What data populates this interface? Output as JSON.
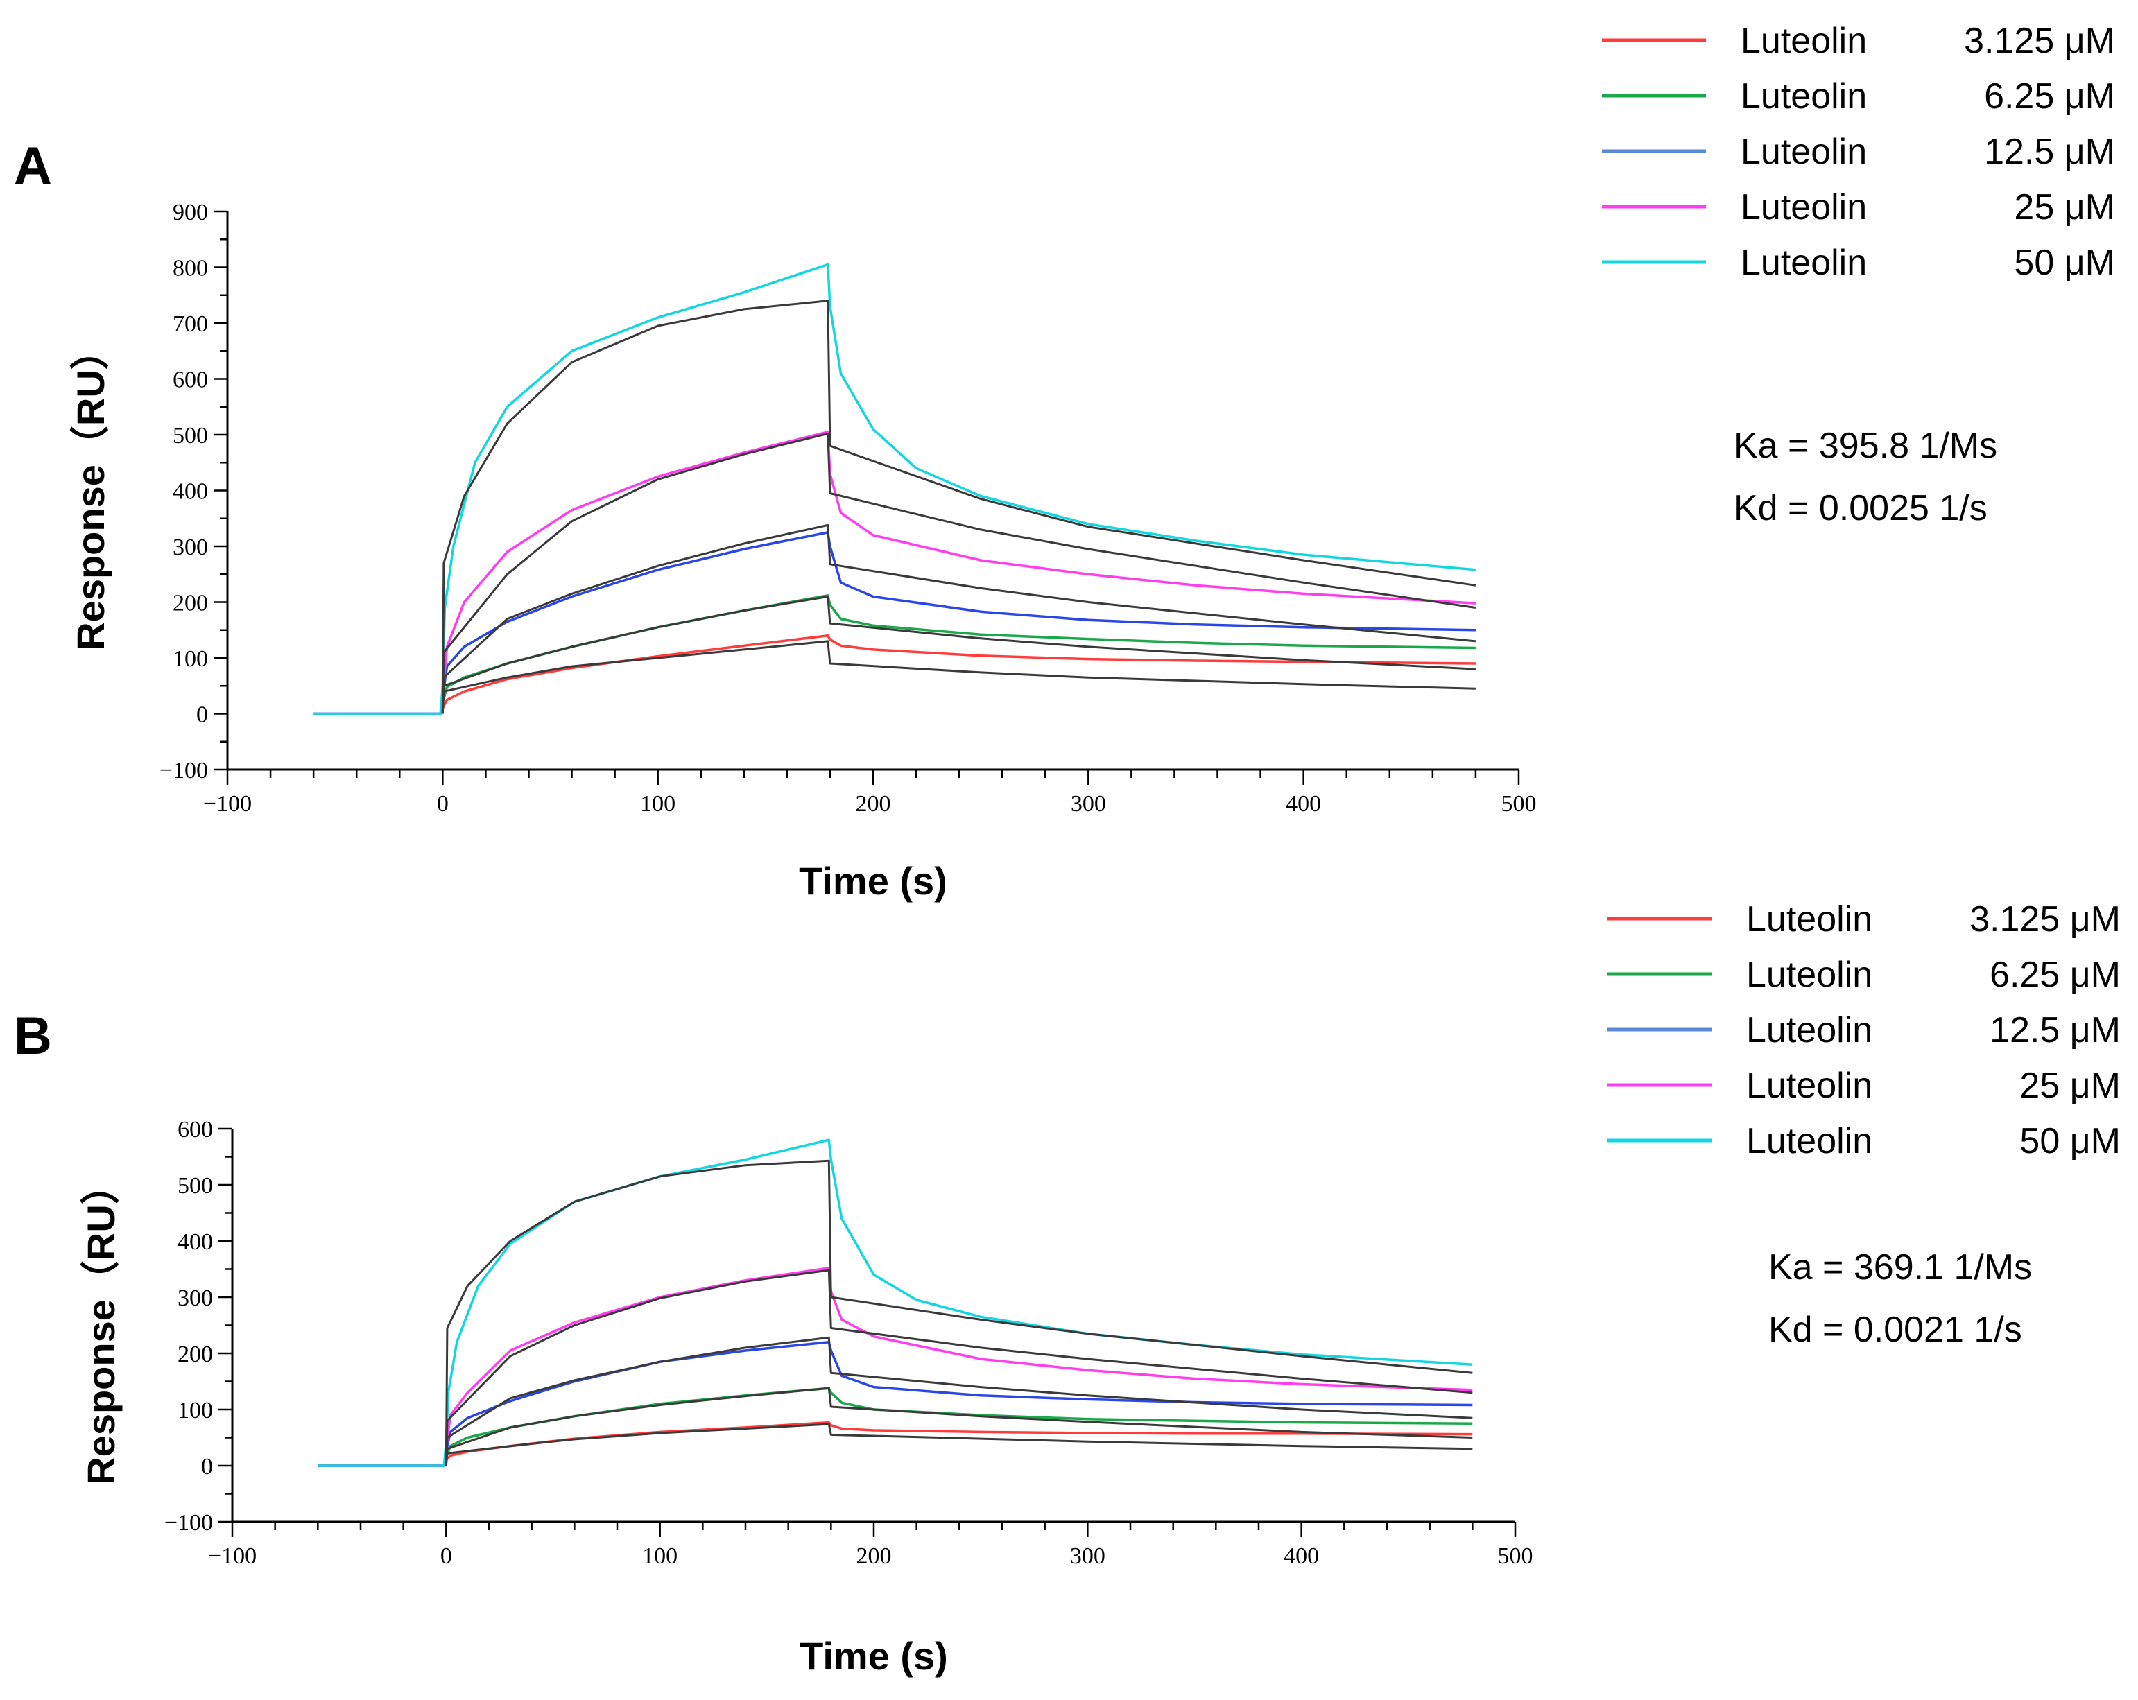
{
  "colors": {
    "c3125": "#ff3b3b",
    "c625": "#1aa84a",
    "c125": "#2b46e8",
    "c25": "#ff3cf0",
    "c50": "#13d6e0",
    "fit": "#3a3a3a",
    "legend_c125": "#5a87d6"
  },
  "chart_data": [
    {
      "type": "line",
      "panel_label": "A",
      "title": "",
      "xlabel": "Time (s)",
      "ylabel": "Response（RU）",
      "xlim": [
        -100,
        500
      ],
      "ylim": [
        -100,
        900
      ],
      "xticks": [
        "−100",
        "0",
        "100",
        "200",
        "300",
        "400",
        "500"
      ],
      "yticks": [
        "−100",
        "0",
        "100",
        "200",
        "300",
        "400",
        "500",
        "600",
        "700",
        "800",
        "900"
      ],
      "legend_position": "top-right",
      "legend": [
        {
          "name": "Luteolin",
          "conc": "3.125 μM",
          "color_key": "c3125"
        },
        {
          "name": "Luteolin",
          "conc": "6.25 μM",
          "color_key": "c625"
        },
        {
          "name": "Luteolin",
          "conc": "12.5 μM",
          "color_key": "legend_c125"
        },
        {
          "name": "Luteolin",
          "conc": "25 μM",
          "color_key": "c25"
        },
        {
          "name": "Luteolin",
          "conc": "50 μM",
          "color_key": "c50"
        }
      ],
      "kinetics": [
        "Ka = 395.8  1/Ms",
        "Kd = 0.0025  1/s"
      ],
      "series": [
        {
          "name": "3.125 μM",
          "color_key": "c3125",
          "kind": "data",
          "x": [
            -60,
            -1,
            0,
            2,
            10,
            30,
            60,
            100,
            140,
            179,
            180,
            185,
            200,
            250,
            300,
            350,
            400,
            480
          ],
          "y": [
            0,
            0,
            10,
            25,
            40,
            62,
            82,
            103,
            122,
            140,
            133,
            122,
            115,
            104,
            98,
            95,
            93,
            90
          ]
        },
        {
          "name": "6.25 μM",
          "color_key": "c625",
          "kind": "data",
          "x": [
            -60,
            -1,
            0,
            2,
            10,
            30,
            60,
            100,
            140,
            179,
            180,
            185,
            200,
            250,
            300,
            350,
            400,
            480
          ],
          "y": [
            0,
            0,
            20,
            48,
            65,
            90,
            120,
            155,
            185,
            212,
            195,
            170,
            158,
            142,
            134,
            127,
            122,
            118
          ]
        },
        {
          "name": "12.5 μM",
          "color_key": "c125",
          "kind": "data",
          "x": [
            -60,
            -1,
            0,
            2,
            10,
            30,
            60,
            100,
            140,
            179,
            180,
            185,
            200,
            250,
            300,
            350,
            400,
            480
          ],
          "y": [
            0,
            0,
            30,
            85,
            120,
            165,
            210,
            258,
            295,
            325,
            300,
            235,
            210,
            183,
            168,
            160,
            155,
            150
          ]
        },
        {
          "name": "25 μM",
          "color_key": "c25",
          "kind": "data",
          "x": [
            -60,
            -1,
            0,
            2,
            10,
            30,
            60,
            100,
            140,
            179,
            180,
            185,
            200,
            250,
            300,
            350,
            400,
            480
          ],
          "y": [
            0,
            0,
            35,
            120,
            200,
            290,
            365,
            425,
            468,
            505,
            430,
            360,
            320,
            275,
            250,
            230,
            215,
            198
          ]
        },
        {
          "name": "50 μM",
          "color_key": "c50",
          "kind": "data",
          "x": [
            -60,
            -1,
            0,
            1,
            5,
            15,
            30,
            60,
            100,
            140,
            179,
            180,
            185,
            200,
            220,
            250,
            300,
            350,
            400,
            480
          ],
          "y": [
            0,
            0,
            50,
            190,
            300,
            450,
            550,
            650,
            710,
            755,
            805,
            730,
            610,
            510,
            440,
            390,
            340,
            310,
            285,
            258
          ]
        },
        {
          "name": "fit 3.125",
          "color_key": "fit",
          "kind": "fit",
          "x": [
            0,
            0.5,
            30,
            60,
            100,
            140,
            179,
            180,
            250,
            300,
            400,
            480
          ],
          "y": [
            0,
            40,
            65,
            85,
            100,
            115,
            130,
            90,
            74,
            65,
            53,
            45
          ]
        },
        {
          "name": "fit 6.25",
          "color_key": "fit",
          "kind": "fit",
          "x": [
            0,
            0.5,
            30,
            60,
            100,
            140,
            179,
            180,
            250,
            300,
            400,
            480
          ],
          "y": [
            0,
            50,
            90,
            120,
            155,
            185,
            210,
            162,
            135,
            120,
            96,
            80
          ]
        },
        {
          "name": "fit 12.5",
          "color_key": "fit",
          "kind": "fit",
          "x": [
            0,
            0.5,
            30,
            60,
            100,
            140,
            179,
            180,
            250,
            300,
            400,
            480
          ],
          "y": [
            0,
            65,
            170,
            215,
            265,
            305,
            338,
            268,
            225,
            200,
            160,
            130
          ]
        },
        {
          "name": "fit 25",
          "color_key": "fit",
          "kind": "fit",
          "x": [
            0,
            0.5,
            30,
            60,
            100,
            140,
            179,
            180,
            250,
            300,
            400,
            480
          ],
          "y": [
            0,
            110,
            250,
            345,
            420,
            465,
            502,
            395,
            330,
            295,
            235,
            190
          ]
        },
        {
          "name": "fit 50",
          "color_key": "fit",
          "kind": "fit",
          "x": [
            0,
            0.5,
            10,
            30,
            60,
            100,
            140,
            179,
            180,
            250,
            300,
            400,
            480
          ],
          "y": [
            0,
            270,
            390,
            520,
            630,
            695,
            725,
            740,
            480,
            385,
            335,
            275,
            230
          ]
        }
      ]
    },
    {
      "type": "line",
      "panel_label": "B",
      "title": "",
      "xlabel": "Time (s)",
      "ylabel": "Response（RU）",
      "xlim": [
        -100,
        500
      ],
      "ylim": [
        -100,
        600
      ],
      "xticks": [
        "−100",
        "0",
        "100",
        "200",
        "300",
        "400",
        "500"
      ],
      "yticks": [
        "−100",
        "0",
        "100",
        "200",
        "300",
        "400",
        "500",
        "600"
      ],
      "legend_position": "top-right",
      "legend": [
        {
          "name": "Luteolin",
          "conc": "3.125 μM",
          "color_key": "c3125"
        },
        {
          "name": "Luteolin",
          "conc": "6.25 μM",
          "color_key": "c625"
        },
        {
          "name": "Luteolin",
          "conc": "12.5 μM",
          "color_key": "legend_c125"
        },
        {
          "name": "Luteolin",
          "conc": "25 μM",
          "color_key": "c25"
        },
        {
          "name": "Luteolin",
          "conc": "50 μM",
          "color_key": "c50"
        }
      ],
      "kinetics": [
        "Ka = 369.1  1/Ms",
        "Kd = 0.0021  1/s"
      ],
      "series": [
        {
          "name": "3.125 μM",
          "color_key": "c3125",
          "kind": "data",
          "x": [
            -60,
            -1,
            0,
            2,
            10,
            30,
            60,
            100,
            140,
            179,
            180,
            185,
            200,
            250,
            300,
            350,
            400,
            480
          ],
          "y": [
            0,
            0,
            10,
            18,
            25,
            35,
            48,
            60,
            68,
            77,
            72,
            66,
            63,
            60,
            58,
            57,
            57,
            56
          ]
        },
        {
          "name": "6.25 μM",
          "color_key": "c625",
          "kind": "data",
          "x": [
            -60,
            -1,
            0,
            2,
            10,
            30,
            60,
            100,
            140,
            179,
            180,
            185,
            200,
            250,
            300,
            350,
            400,
            480
          ],
          "y": [
            0,
            0,
            15,
            35,
            50,
            68,
            88,
            110,
            125,
            138,
            130,
            112,
            100,
            90,
            83,
            80,
            77,
            75
          ]
        },
        {
          "name": "12.5 μM",
          "color_key": "c125",
          "kind": "data",
          "x": [
            -60,
            -1,
            0,
            2,
            10,
            30,
            60,
            100,
            140,
            179,
            180,
            185,
            200,
            250,
            300,
            350,
            400,
            480
          ],
          "y": [
            0,
            0,
            25,
            60,
            85,
            115,
            150,
            185,
            205,
            220,
            205,
            160,
            140,
            125,
            118,
            113,
            110,
            108
          ]
        },
        {
          "name": "25 μM",
          "color_key": "c25",
          "kind": "data",
          "x": [
            -60,
            -1,
            0,
            2,
            10,
            30,
            60,
            100,
            140,
            179,
            180,
            185,
            200,
            250,
            300,
            350,
            400,
            480
          ],
          "y": [
            0,
            0,
            30,
            90,
            130,
            205,
            255,
            300,
            330,
            352,
            310,
            260,
            230,
            190,
            170,
            155,
            145,
            135
          ]
        },
        {
          "name": "50 μM",
          "color_key": "c50",
          "kind": "data",
          "x": [
            -60,
            -1,
            0,
            1,
            5,
            15,
            30,
            60,
            100,
            140,
            179,
            180,
            185,
            200,
            220,
            250,
            300,
            350,
            400,
            480
          ],
          "y": [
            0,
            0,
            40,
            130,
            220,
            320,
            395,
            470,
            515,
            545,
            580,
            545,
            440,
            340,
            295,
            265,
            235,
            215,
            198,
            180
          ]
        },
        {
          "name": "fit 3.125",
          "color_key": "fit",
          "kind": "fit",
          "x": [
            0,
            0.5,
            30,
            60,
            100,
            140,
            179,
            180,
            250,
            300,
            400,
            480
          ],
          "y": [
            0,
            22,
            35,
            47,
            58,
            66,
            74,
            55,
            48,
            43,
            35,
            30
          ]
        },
        {
          "name": "fit 6.25",
          "color_key": "fit",
          "kind": "fit",
          "x": [
            0,
            0.5,
            30,
            60,
            100,
            140,
            179,
            180,
            250,
            300,
            400,
            480
          ],
          "y": [
            0,
            30,
            68,
            88,
            108,
            124,
            138,
            105,
            88,
            78,
            60,
            50
          ]
        },
        {
          "name": "fit 12.5",
          "color_key": "fit",
          "kind": "fit",
          "x": [
            0,
            0.5,
            30,
            60,
            100,
            140,
            179,
            180,
            250,
            300,
            400,
            480
          ],
          "y": [
            0,
            50,
            120,
            152,
            185,
            210,
            228,
            165,
            140,
            125,
            100,
            85
          ]
        },
        {
          "name": "fit 25",
          "color_key": "fit",
          "kind": "fit",
          "x": [
            0,
            0.5,
            30,
            60,
            100,
            140,
            179,
            180,
            250,
            300,
            400,
            480
          ],
          "y": [
            0,
            80,
            195,
            250,
            298,
            328,
            348,
            245,
            210,
            190,
            155,
            130
          ]
        },
        {
          "name": "fit 50",
          "color_key": "fit",
          "kind": "fit",
          "x": [
            0,
            0.5,
            10,
            30,
            60,
            100,
            140,
            179,
            180,
            250,
            300,
            400,
            480
          ],
          "y": [
            0,
            245,
            320,
            400,
            470,
            515,
            535,
            543,
            300,
            260,
            235,
            195,
            165
          ]
        }
      ]
    }
  ]
}
